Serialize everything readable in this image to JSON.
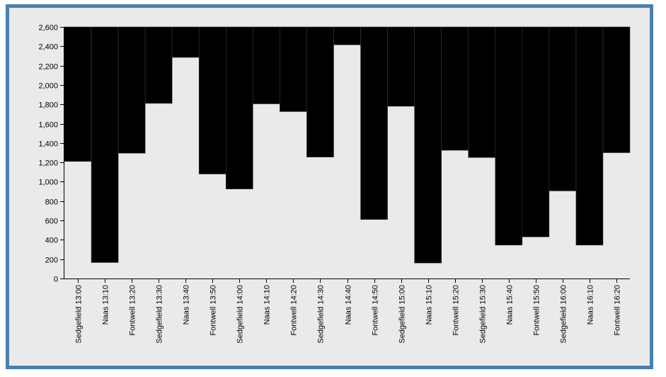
{
  "colors": {
    "frame_border": "#4a7fb0",
    "background": "#eaeaea",
    "bar": "#000000"
  },
  "chart_data": {
    "type": "bar",
    "title": "",
    "xlabel": "",
    "ylabel": "",
    "ylim": [
      0,
      2600
    ],
    "y_ticks": [
      0,
      200,
      400,
      600,
      800,
      1000,
      1200,
      1400,
      1600,
      1800,
      2000,
      2200,
      2400,
      2600
    ],
    "y_tick_labels": [
      "0",
      "200",
      "400",
      "600",
      "800",
      "1,000",
      "1,200",
      "1,400",
      "1,600",
      "1,800",
      "2,000",
      "2,200",
      "2,400",
      "2,600"
    ],
    "bar_direction": "hanging from top axis (2,600) down to value",
    "categories": [
      "Sedgefield 13:00",
      "Naas 13:10",
      "Fontwell 13:20",
      "Sedgefield 13:30",
      "Naas 13:40",
      "Fontwell 13:50",
      "Sedgefield 14:00",
      "Naas 14:10",
      "Fontwell 14:20",
      "Sedgefield 14:30",
      "Naas 14:40",
      "Fontwell 14:50",
      "Sedgefield 15:00",
      "Naas 15:10",
      "Fontwell 15:20",
      "Sedgefield 15:30",
      "Naas 15:40",
      "Fontwell 15:50",
      "Sedgefield 16:00",
      "Naas 16:10",
      "Fontwell 16:20"
    ],
    "values": [
      1210,
      165,
      1295,
      1810,
      2285,
      1080,
      925,
      1805,
      1725,
      1255,
      2415,
      610,
      1780,
      160,
      1325,
      1250,
      345,
      430,
      905,
      345,
      1300
    ],
    "grid": false
  }
}
